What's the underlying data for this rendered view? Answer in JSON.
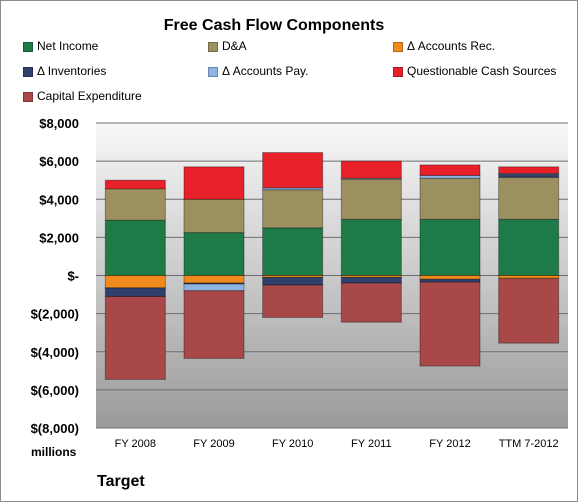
{
  "chart_data": {
    "type": "bar",
    "stacked": true,
    "title": "Free Cash Flow Components",
    "unit_label": "millions",
    "company": "Target",
    "categories": [
      "FY 2008",
      "FY 2009",
      "FY 2010",
      "FY 2011",
      "FY 2012",
      "TTM 7-2012"
    ],
    "ylim": [
      -8000,
      8000
    ],
    "yticks": [
      8000,
      6000,
      4000,
      2000,
      0,
      -2000,
      -4000,
      -6000,
      -8000
    ],
    "ytick_labels": [
      "$8,000",
      "$6,000",
      "$4,000",
      "$2,000",
      "$-",
      "$(2,000)",
      "$(4,000)",
      "$(6,000)",
      "$(8,000)"
    ],
    "legend_position": "top",
    "series": [
      {
        "name": "Net Income",
        "color": "#1e7b47",
        "values": [
          2900,
          2250,
          2500,
          2950,
          2950,
          2950
        ]
      },
      {
        "name": "D&A",
        "color": "#9c9060",
        "values": [
          1650,
          1750,
          2000,
          2100,
          2150,
          2200
        ]
      },
      {
        "name": "Δ Accounts Rec.",
        "color": "#f08a1d",
        "values": [
          -650,
          -400,
          -100,
          -100,
          -200,
          -150
        ]
      },
      {
        "name": "Δ Inventories",
        "color": "#2f3f6e",
        "values": [
          -450,
          -50,
          -400,
          -300,
          -150,
          150
        ]
      },
      {
        "name": "Δ Accounts Pay.",
        "color": "#8fb4e3",
        "values": [
          0,
          -350,
          100,
          50,
          150,
          50
        ]
      },
      {
        "name": "Questionable Cash Sources",
        "color": "#e8202a",
        "values": [
          450,
          1700,
          1850,
          900,
          550,
          350
        ]
      },
      {
        "name": "Capital Expenditure",
        "color": "#a84848",
        "values": [
          -4350,
          -3550,
          -1700,
          -2050,
          -4400,
          -3400
        ]
      }
    ]
  }
}
